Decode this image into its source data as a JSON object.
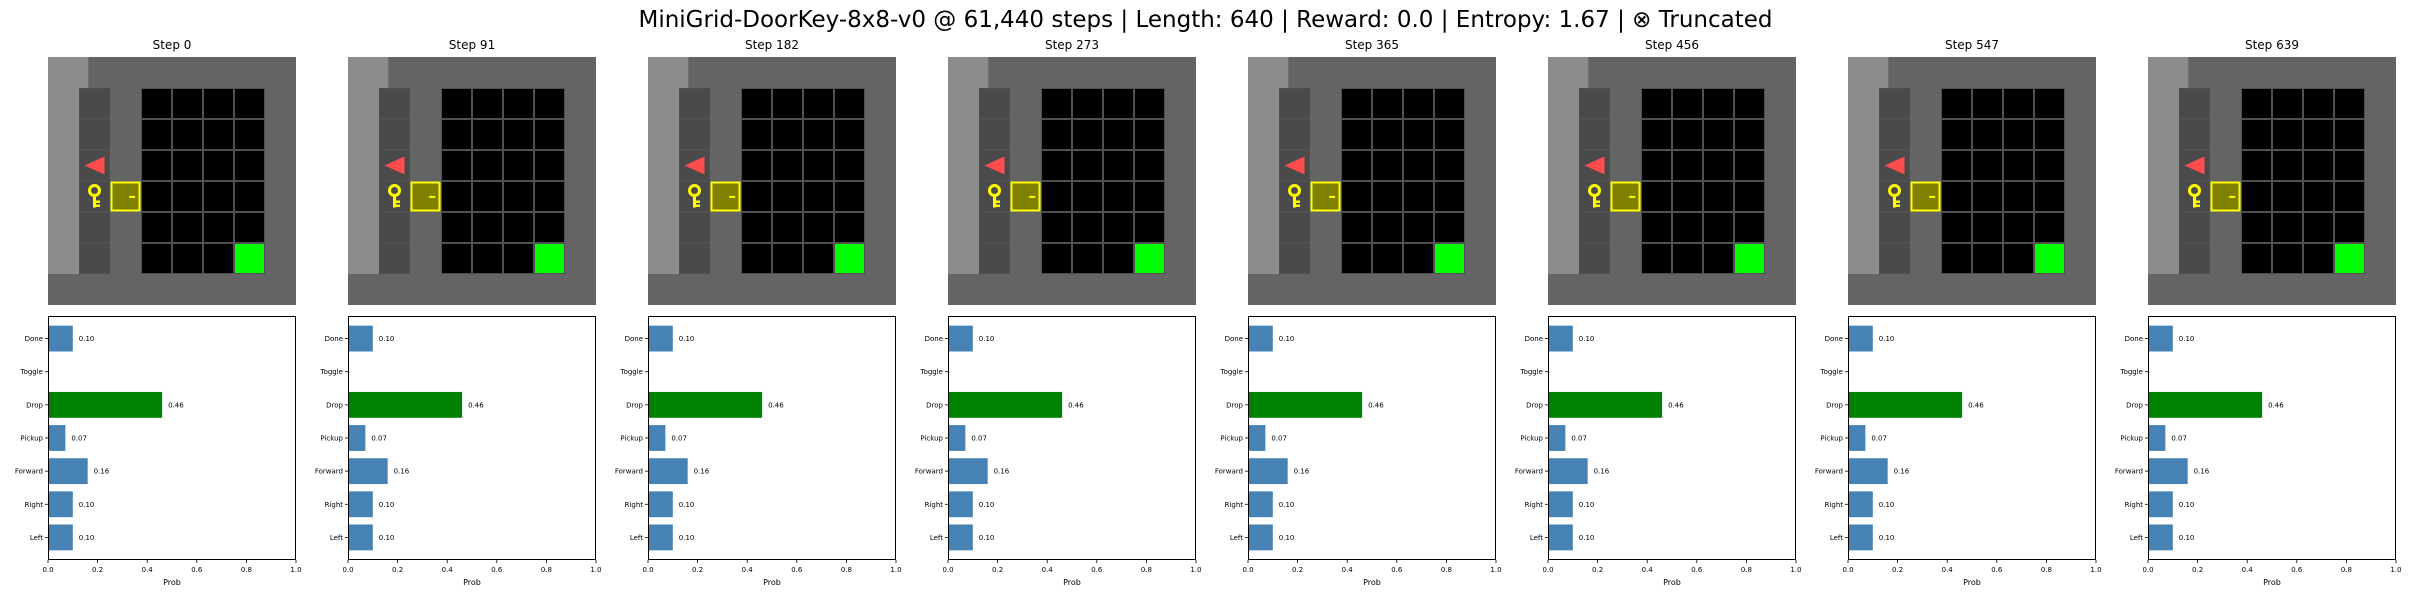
{
  "figure_title": "MiniGrid-DoorKey-8x8-v0 @ 61,440 steps | Length: 640 | Reward: 0.0 | Entropy: 1.67 | ⊗ Truncated",
  "colors": {
    "bar_default": "#4682b4",
    "bar_selected": "#008000",
    "wall": "#646464",
    "wall_light": "#8c8c8c",
    "floor": "#000000",
    "grid_line": "#505050",
    "agent": "#ff4d4d",
    "key": "#ffff00",
    "door_fill": "#7f7f00",
    "door_border": "#ffff00",
    "goal": "#00ff00"
  },
  "icons": [
    "agent-triangle-icon",
    "key-icon",
    "door-icon",
    "goal-square-icon"
  ],
  "panels": [
    {
      "step_label": "Step 0"
    },
    {
      "step_label": "Step 91"
    },
    {
      "step_label": "Step 182"
    },
    {
      "step_label": "Step 273"
    },
    {
      "step_label": "Step 365"
    },
    {
      "step_label": "Step 456"
    },
    {
      "step_label": "Step 547"
    },
    {
      "step_label": "Step 639"
    }
  ],
  "chart_data": {
    "type": "bar",
    "orientation": "horizontal",
    "categories": [
      "Left",
      "Right",
      "Forward",
      "Pickup",
      "Drop",
      "Toggle",
      "Done"
    ],
    "values": [
      0.1,
      0.1,
      0.16,
      0.07,
      0.46,
      0.0,
      0.1
    ],
    "value_labels": [
      "0.10",
      "0.10",
      "0.16",
      "0.07",
      "0.46",
      "",
      "0.10"
    ],
    "selected_category": "Drop",
    "xlabel": "Prob",
    "xlim": [
      0,
      1.0
    ],
    "xticks": [
      "0.0",
      "0.2",
      "0.4",
      "0.6",
      "0.8",
      "1.0"
    ],
    "panels": 8,
    "grid": false
  }
}
